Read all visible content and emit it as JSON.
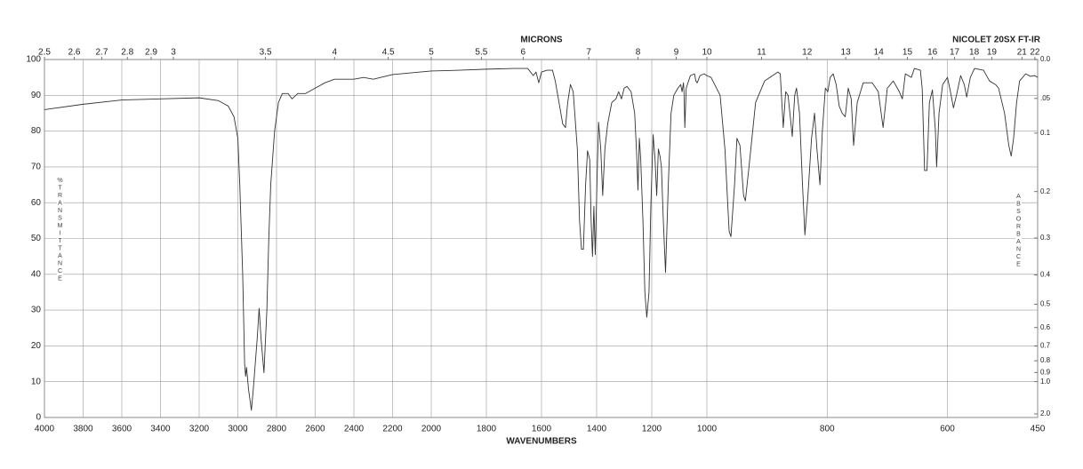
{
  "chart_data": {
    "type": "line",
    "title": "NICOLET 20SX FT-IR",
    "xlabel": "WAVENUMBERS",
    "x2label": "MICRONS",
    "ylabel": "%TRANSMITTANCE",
    "y2label": "ABSORBANCE",
    "color": "#333333",
    "grid": true,
    "xlim": [
      4000,
      450
    ],
    "xscale_breaks": [
      2000,
      1000
    ],
    "xticks": [
      4000,
      3800,
      3600,
      3400,
      3200,
      3000,
      2800,
      2600,
      2400,
      2200,
      2000,
      1800,
      1600,
      1400,
      1200,
      1000,
      800,
      600,
      450
    ],
    "x2ticks": [
      2.5,
      2.6,
      2.7,
      2.8,
      2.9,
      3,
      3.5,
      4,
      4.5,
      5,
      5.5,
      6,
      7,
      8,
      9,
      10,
      11,
      12,
      13,
      14,
      15,
      16,
      17,
      18,
      19,
      21,
      22
    ],
    "ylim": [
      0,
      100
    ],
    "yticks": [
      0,
      10,
      20,
      30,
      40,
      50,
      60,
      70,
      80,
      90,
      100
    ],
    "y2scale": "absorbance",
    "y2ticks": [
      {
        "value": 0,
        "label": "0.0"
      },
      {
        "value": 0.05,
        "label": ".05"
      },
      0.1,
      0.2,
      0.3,
      0.4,
      0.5,
      0.6,
      0.7,
      0.8,
      0.9,
      {
        "value": 1,
        "label": "1.0"
      },
      {
        "value": 2,
        "label": "2.0"
      }
    ],
    "x": [
      4000,
      3800,
      3600,
      3400,
      3200,
      3100,
      3050,
      3020,
      3000,
      2990,
      2975,
      2965,
      2960,
      2955,
      2945,
      2930,
      2920,
      2900,
      2890,
      2880,
      2865,
      2850,
      2840,
      2830,
      2810,
      2790,
      2770,
      2740,
      2720,
      2690,
      2650,
      2600,
      2550,
      2500,
      2400,
      2350,
      2300,
      2200,
      2000,
      1900,
      1800,
      1700,
      1650,
      1630,
      1620,
      1610,
      1600,
      1580,
      1560,
      1550,
      1523,
      1513,
      1505,
      1495,
      1485,
      1470,
      1462,
      1455,
      1448,
      1440,
      1433,
      1425,
      1420,
      1415,
      1410,
      1405,
      1398,
      1393,
      1385,
      1378,
      1370,
      1360,
      1345,
      1330,
      1320,
      1310,
      1300,
      1290,
      1275,
      1262,
      1255,
      1250,
      1245,
      1240,
      1232,
      1225,
      1218,
      1210,
      1203,
      1195,
      1188,
      1182,
      1176,
      1170,
      1165,
      1158,
      1150,
      1140,
      1130,
      1120,
      1105,
      1095,
      1090,
      1085,
      1083,
      1080,
      1075,
      1060,
      1045,
      1040,
      1035,
      1025,
      1010,
      1000,
      993,
      978,
      970,
      963,
      960,
      954,
      950,
      945,
      939,
      936,
      930,
      919,
      904,
      882,
      878,
      873,
      869,
      865,
      858,
      854,
      851,
      846,
      841,
      837,
      832,
      826,
      821,
      817,
      812,
      808,
      803,
      799,
      795,
      790,
      785,
      780,
      775,
      770,
      768,
      765,
      760,
      756,
      750,
      740,
      725,
      715,
      707,
      700,
      690,
      680,
      675,
      670,
      660,
      655,
      645,
      642,
      638,
      634,
      630,
      625,
      620,
      618,
      614,
      608,
      600,
      595,
      590,
      585,
      578,
      572,
      568,
      562,
      555,
      540,
      530,
      520,
      515,
      505,
      498,
      494,
      490,
      485,
      480,
      470,
      462,
      455,
      450
    ],
    "values": [
      86,
      87.5,
      88.7,
      89,
      89.3,
      88.5,
      87,
      84,
      78,
      65,
      40,
      15,
      11.5,
      14,
      8,
      2,
      8,
      22,
      30.5,
      22,
      12.5,
      30,
      50,
      65,
      80,
      88,
      90.5,
      90.5,
      89,
      90.5,
      90.5,
      92,
      93.5,
      94.5,
      94.5,
      95,
      94.5,
      95.8,
      96.8,
      97,
      97.3,
      97.5,
      97.5,
      95.5,
      96.5,
      93.5,
      96.5,
      97,
      97,
      94,
      82,
      81,
      88,
      93,
      91,
      75,
      55,
      47,
      47,
      65,
      74.5,
      72,
      55,
      45,
      59,
      45.5,
      68,
      82.5,
      75,
      62,
      75,
      82,
      88,
      89,
      91,
      89,
      92,
      92.5,
      91,
      85,
      74,
      63.5,
      78,
      72,
      55,
      35,
      28,
      35,
      60,
      79,
      72,
      62,
      75,
      73,
      70,
      55,
      40.5,
      65,
      85,
      90,
      92,
      93,
      91,
      93.5,
      91,
      81,
      92,
      95.5,
      96,
      94,
      93.5,
      95.5,
      96,
      95.5,
      95,
      90,
      75,
      52,
      50.5,
      65,
      78,
      76,
      62,
      60.5,
      70,
      88,
      94,
      96.5,
      96,
      81,
      91,
      90,
      78.5,
      90,
      92,
      85,
      65,
      51,
      62,
      78,
      85,
      75,
      65,
      80,
      92,
      91,
      95,
      96,
      93,
      87,
      85,
      84,
      87,
      92,
      89,
      76,
      88,
      93.5,
      93.5,
      91,
      81,
      92,
      94,
      91,
      89,
      96,
      95,
      97.5,
      97,
      92,
      69,
      69,
      88,
      91.5,
      80,
      70,
      85,
      93,
      95,
      91,
      86.5,
      90,
      95.5,
      93,
      89.5,
      95,
      97.5,
      97,
      94,
      93,
      92,
      85,
      76,
      73,
      78,
      88,
      94,
      96,
      95.3,
      95.5,
      95
    ]
  }
}
